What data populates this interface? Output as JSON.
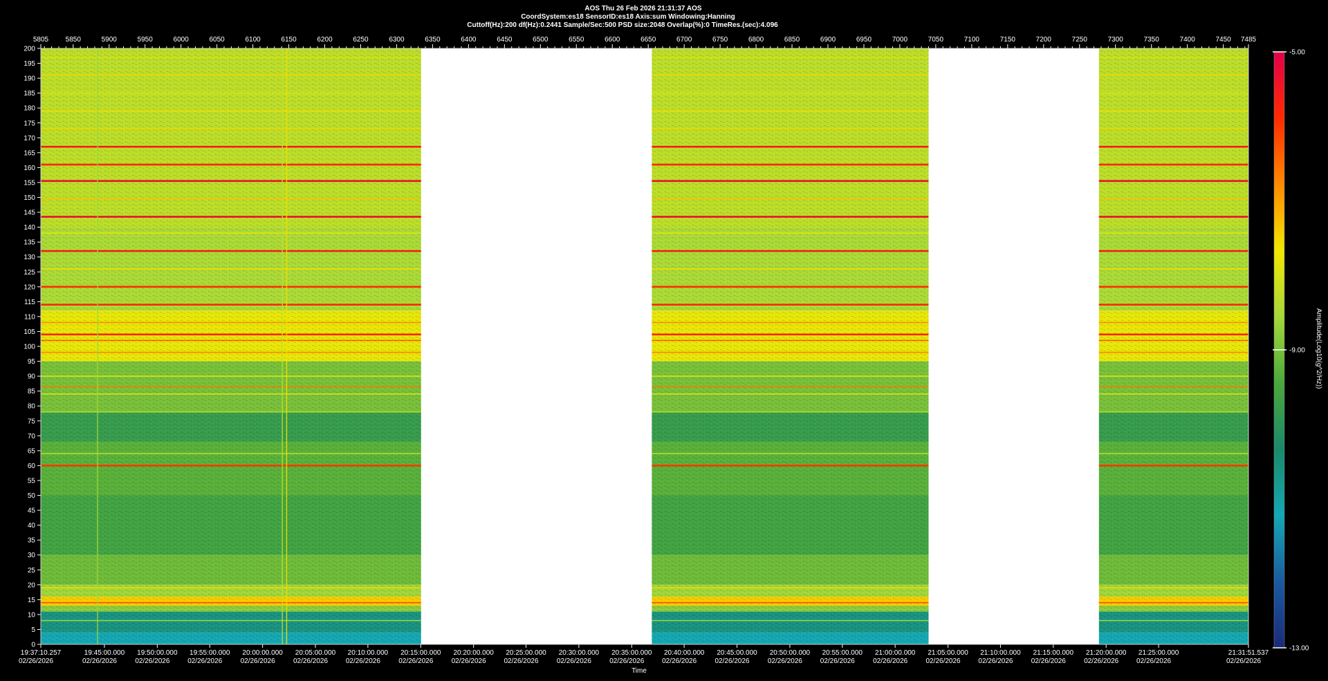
{
  "header": {
    "line1": "AOS  Thu 26 Feb 2026 21:31:37  AOS",
    "line2": "CoordSystem:es18   SensorID:es18    Axis:sum    Windowing:Hanning",
    "line3": "Cuttoff(Hz):200      df(Hz):0.2441      Sample/Sec:500      PSD size:2048      Overlap(%):0        TimeRes.(sec):4.096"
  },
  "colorbar": {
    "label": "Amplitude(Log10(g^2/Hz))",
    "ticks": [
      "-5.00",
      "-9.00",
      "-13.00"
    ],
    "stops": [
      "#e0004a",
      "#ff2a00",
      "#ff8a00",
      "#f2e800",
      "#a6d83a",
      "#4aa83a",
      "#1a8a6a",
      "#14a8b4",
      "#1a5aa0",
      "#1a2a7a"
    ]
  },
  "chart_data": {
    "type": "heatmap",
    "title": "AOS  Thu 26 Feb 2026 21:31:37  AOS",
    "xlabel": "Time",
    "ylabel": "",
    "top_axis": {
      "range": [
        5805,
        7485
      ],
      "ticks": [
        "5805",
        "5850",
        "5900",
        "5950",
        "6000",
        "6050",
        "6100",
        "6150",
        "6200",
        "6250",
        "6300",
        "6350",
        "6400",
        "6450",
        "6500",
        "6550",
        "6600",
        "6650",
        "6700",
        "6750",
        "6800",
        "6850",
        "6900",
        "6950",
        "7000",
        "7050",
        "7100",
        "7150",
        "7200",
        "7250",
        "7300",
        "7350",
        "7400",
        "7450",
        "7485"
      ]
    },
    "bottom_ticks": [
      {
        "value": 5805,
        "time": "19:37:10.257",
        "date": "02/26/2026"
      },
      {
        "value": 5893.5,
        "time": "19:45:00.000",
        "date": "02/26/2026"
      },
      {
        "value": 5967,
        "time": "19:50:00.000",
        "date": "02/26/2026"
      },
      {
        "value": 6040,
        "time": "19:55:00.000",
        "date": "02/26/2026"
      },
      {
        "value": 6113.5,
        "time": "20:00:00.000",
        "date": "02/26/2026"
      },
      {
        "value": 6187,
        "time": "20:05:00.000",
        "date": "02/26/2026"
      },
      {
        "value": 6260,
        "time": "20:10:00.000",
        "date": "02/26/2026"
      },
      {
        "value": 6333.5,
        "time": "20:15:00.000",
        "date": "02/26/2026"
      },
      {
        "value": 6407,
        "time": "20:20:00.000",
        "date": "02/26/2026"
      },
      {
        "value": 6480,
        "time": "20:25:00.000",
        "date": "02/26/2026"
      },
      {
        "value": 6553.5,
        "time": "20:30:00.000",
        "date": "02/26/2026"
      },
      {
        "value": 6627,
        "time": "20:35:00.000",
        "date": "02/26/2026"
      },
      {
        "value": 6700,
        "time": "20:40:00.000",
        "date": "02/26/2026"
      },
      {
        "value": 6773.5,
        "time": "20:45:00.000",
        "date": "02/26/2026"
      },
      {
        "value": 6847,
        "time": "20:50:00.000",
        "date": "02/26/2026"
      },
      {
        "value": 6920,
        "time": "20:55:00.000",
        "date": "02/26/2026"
      },
      {
        "value": 6993.5,
        "time": "21:00:00.000",
        "date": "02/26/2026"
      },
      {
        "value": 7067,
        "time": "21:05:00.000",
        "date": "02/26/2026"
      },
      {
        "value": 7140,
        "time": "21:10:00.000",
        "date": "02/26/2026"
      },
      {
        "value": 7213.5,
        "time": "21:15:00.000",
        "date": "02/26/2026"
      },
      {
        "value": 7287,
        "time": "21:20:00.000",
        "date": "02/26/2026"
      },
      {
        "value": 7360,
        "time": "21:25:00.000",
        "date": "02/26/2026"
      },
      {
        "value": 7485,
        "time": "21:31:51.537",
        "date": "02/26/2026"
      }
    ],
    "yaxis": {
      "range": [
        0,
        200
      ],
      "step": 5
    },
    "color_range": [
      -13,
      -5
    ],
    "data_segments": [
      {
        "start": 5805,
        "end": 6334
      },
      {
        "start": 6655,
        "end": 7040
      },
      {
        "start": 7277,
        "end": 7485
      }
    ],
    "frequency_bands": [
      {
        "f0": 0,
        "f1": 4,
        "amp": -11.2
      },
      {
        "f0": 4,
        "f1": 11,
        "amp": -10.6
      },
      {
        "f0": 11,
        "f1": 13,
        "amp": -8.8
      },
      {
        "f0": 13,
        "f1": 16,
        "amp": -7.4
      },
      {
        "f0": 16,
        "f1": 20,
        "amp": -8.6
      },
      {
        "f0": 20,
        "f1": 30,
        "amp": -9.1
      },
      {
        "f0": 30,
        "f1": 50,
        "amp": -9.6
      },
      {
        "f0": 50,
        "f1": 68,
        "amp": -9.3
      },
      {
        "f0": 68,
        "f1": 78,
        "amp": -9.8
      },
      {
        "f0": 78,
        "f1": 95,
        "amp": -9.0
      },
      {
        "f0": 95,
        "f1": 112,
        "amp": -7.8
      },
      {
        "f0": 112,
        "f1": 140,
        "amp": -8.5
      },
      {
        "f0": 140,
        "f1": 200,
        "amp": -8.3
      }
    ],
    "line_frequencies": [
      {
        "f": 8,
        "amp": -8.6
      },
      {
        "f": 14,
        "amp": -6.2
      },
      {
        "f": 19,
        "amp": -7.5
      },
      {
        "f": 60,
        "amp": -6.0
      },
      {
        "f": 64,
        "amp": -8.3
      },
      {
        "f": 78,
        "amp": -8.4
      },
      {
        "f": 84,
        "amp": -8.0
      },
      {
        "f": 86.5,
        "amp": -6.6
      },
      {
        "f": 90,
        "amp": -7.9
      },
      {
        "f": 98,
        "amp": -6.7
      },
      {
        "f": 102,
        "amp": -6.3
      },
      {
        "f": 104,
        "amp": -5.8
      },
      {
        "f": 108,
        "amp": -6.8
      },
      {
        "f": 114,
        "amp": -5.8
      },
      {
        "f": 120,
        "amp": -5.9
      },
      {
        "f": 126,
        "amp": -7.6
      },
      {
        "f": 132,
        "amp": -5.6
      },
      {
        "f": 138,
        "amp": -7.8
      },
      {
        "f": 143.5,
        "amp": -5.3
      },
      {
        "f": 149.5,
        "amp": -7.3
      },
      {
        "f": 155.5,
        "amp": -5.3
      },
      {
        "f": 161,
        "amp": -5.8
      },
      {
        "f": 167,
        "amp": -5.6
      },
      {
        "f": 173,
        "amp": -7.5
      },
      {
        "f": 179,
        "amp": -7.6
      },
      {
        "f": 185,
        "amp": -7.9
      },
      {
        "f": 191,
        "amp": -7.5
      },
      {
        "f": 197,
        "amp": -8.0
      }
    ],
    "transients": [
      {
        "x": 6147,
        "amp": -7.6
      },
      {
        "x": 6141,
        "amp": -8.2
      },
      {
        "x": 5884,
        "amp": -8.6
      }
    ]
  }
}
